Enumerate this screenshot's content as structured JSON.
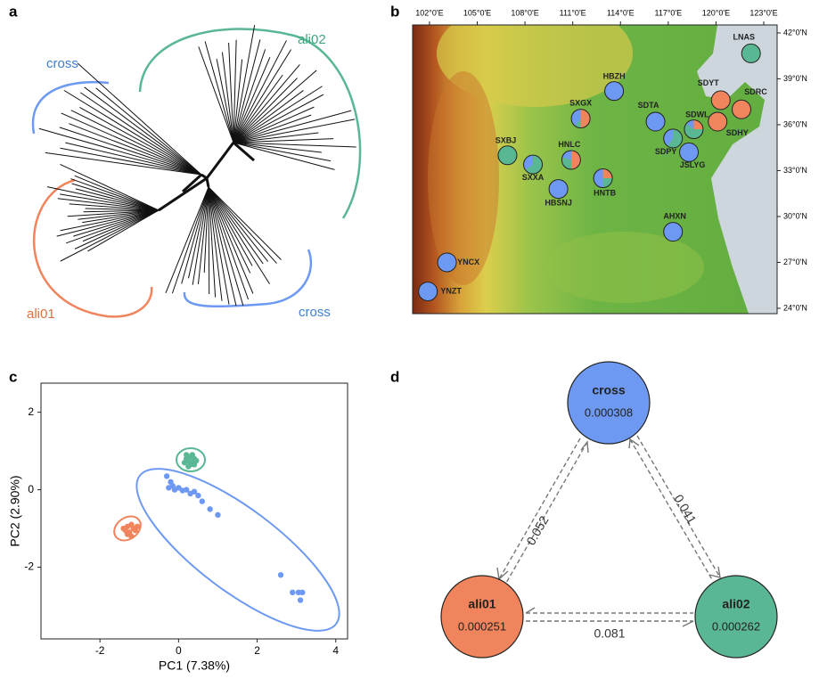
{
  "panel_labels": [
    "a",
    "b",
    "c",
    "d"
  ],
  "tree": {
    "labels": [
      "cross",
      "ali02",
      "ali01",
      "cross"
    ]
  },
  "map": {
    "xlim": [
      100.94,
      123.84
    ],
    "ylim": [
      23.65,
      42.52
    ],
    "xticks": [
      {
        "value": 102,
        "label": "102°0'E"
      },
      {
        "value": 105,
        "label": "105°0'E"
      },
      {
        "value": 108,
        "label": "108°0'E"
      },
      {
        "value": 111,
        "label": "111°0'E"
      },
      {
        "value": 114,
        "label": "114°0'E"
      },
      {
        "value": 117,
        "label": "117°0'E"
      },
      {
        "value": 120,
        "label": "120°0'E"
      },
      {
        "value": 123,
        "label": "123°0'E"
      }
    ],
    "yticks": [
      {
        "value": 42,
        "label": "42°0'N"
      },
      {
        "value": 39,
        "label": "39°0'N"
      },
      {
        "value": 36,
        "label": "36°0'N"
      },
      {
        "value": 33,
        "label": "33°0'N"
      },
      {
        "value": 30,
        "label": "30°0'N"
      },
      {
        "value": 27,
        "label": "27°0'N"
      },
      {
        "value": 24,
        "label": "24°0'N"
      }
    ],
    "colors": [
      "#f0845c",
      "#5ab794",
      "#6e99f2"
    ],
    "sites": [
      {
        "name": "LNAS",
        "lon": 122.2,
        "lat": 40.66,
        "fractions": [
          0,
          1,
          0
        ]
      },
      {
        "name": "HBZH",
        "lon": 113.6,
        "lat": 38.2,
        "fractions": [
          0,
          0,
          1
        ]
      },
      {
        "name": "SXGX",
        "lon": 111.5,
        "lat": 36.4,
        "fractions": [
          0.5,
          0.1,
          0.4
        ]
      },
      {
        "name": "SDYT",
        "lon": 120.3,
        "lat": 37.6,
        "fractions": [
          1,
          0,
          0
        ]
      },
      {
        "name": "SDRC",
        "lon": 121.6,
        "lat": 37.0,
        "fractions": [
          1,
          0,
          0
        ]
      },
      {
        "name": "SDHY",
        "lon": 120.1,
        "lat": 36.2,
        "fractions": [
          1,
          0,
          0
        ]
      },
      {
        "name": "SDTA",
        "lon": 116.2,
        "lat": 36.2,
        "fractions": [
          0,
          0,
          1
        ]
      },
      {
        "name": "SDWL",
        "lon": 118.6,
        "lat": 35.7,
        "fractions": [
          0.25,
          0.6,
          0.15
        ]
      },
      {
        "name": "SDPY",
        "lon": 117.3,
        "lat": 35.1,
        "fractions": [
          0,
          0.6,
          0.4
        ]
      },
      {
        "name": "JSLYG",
        "lon": 118.3,
        "lat": 34.2,
        "fractions": [
          0,
          0,
          1
        ]
      },
      {
        "name": "SXBJ",
        "lon": 106.9,
        "lat": 34.0,
        "fractions": [
          0,
          1,
          0
        ]
      },
      {
        "name": "SXXA",
        "lon": 108.5,
        "lat": 33.4,
        "fractions": [
          0,
          0.65,
          0.35
        ]
      },
      {
        "name": "HNLC",
        "lon": 110.9,
        "lat": 33.7,
        "fractions": [
          0.5,
          0.3,
          0.2
        ]
      },
      {
        "name": "HNTB",
        "lon": 112.9,
        "lat": 32.5,
        "fractions": [
          0.25,
          0.25,
          0.5
        ]
      },
      {
        "name": "HBSNJ",
        "lon": 110.1,
        "lat": 31.8,
        "fractions": [
          0,
          0,
          1
        ]
      },
      {
        "name": "AHXN",
        "lon": 117.3,
        "lat": 29.0,
        "fractions": [
          0,
          0,
          1
        ]
      },
      {
        "name": "YNCX",
        "lon": 103.1,
        "lat": 27.0,
        "fractions": [
          0,
          0,
          1
        ]
      },
      {
        "name": "YNZT",
        "lon": 101.9,
        "lat": 25.1,
        "fractions": [
          0,
          0,
          1
        ]
      }
    ]
  },
  "chart_data": {
    "type": "scatter",
    "x_label": "PC1 (7.38%)",
    "y_label": "PC2 (2.90%)",
    "xlim": [
      -3.5,
      4.3
    ],
    "ylim": [
      -3.85,
      2.75
    ],
    "xticks": [
      -2,
      0,
      2,
      4
    ],
    "yticks": [
      -2,
      0,
      2
    ],
    "series": [
      {
        "color": "#f0845c",
        "x": [
          -1.35,
          -1.3,
          -1.25,
          -1.2,
          -1.15,
          -1.1,
          -1.3,
          -1.2,
          -1.05,
          -1.4
        ],
        "values": [
          -1.05,
          -0.95,
          -1.1,
          -0.9,
          -1.0,
          -1.05,
          -1.15,
          -1.2,
          -0.95,
          -1.0
        ]
      },
      {
        "color": "#5ab794",
        "x": [
          0.15,
          0.2,
          0.25,
          0.3,
          0.35,
          0.4,
          0.2,
          0.3,
          0.35,
          0.45,
          0.25,
          0.4
        ],
        "values": [
          0.7,
          0.8,
          0.75,
          0.85,
          0.7,
          0.8,
          0.9,
          0.65,
          0.9,
          0.75,
          0.6,
          0.65
        ]
      },
      {
        "color": "#6e99f2",
        "x": [
          -0.3,
          -0.2,
          -0.15,
          -0.1,
          0,
          0.1,
          0.2,
          0.3,
          0.5,
          0.6,
          0.8,
          1.0,
          -0.25,
          0.4,
          2.6,
          2.9,
          3.05,
          3.1,
          3.15
        ],
        "values": [
          0.35,
          0.2,
          0.1,
          0.0,
          0.05,
          -0.02,
          0,
          -0.1,
          -0.15,
          -0.3,
          -0.5,
          -0.65,
          0.05,
          -0.05,
          -2.2,
          -2.65,
          -2.65,
          -2.85,
          -2.65
        ]
      }
    ]
  },
  "network": {
    "nodes": [
      {
        "name": "cross",
        "value": "0.000308",
        "color": "#6e99f2"
      },
      {
        "name": "ali01",
        "value": "0.000251",
        "color": "#f0845c"
      },
      {
        "name": "ali02",
        "value": "0.000262",
        "color": "#5ab794"
      }
    ],
    "edges": [
      "0.052",
      "0.041",
      "0.081"
    ]
  }
}
